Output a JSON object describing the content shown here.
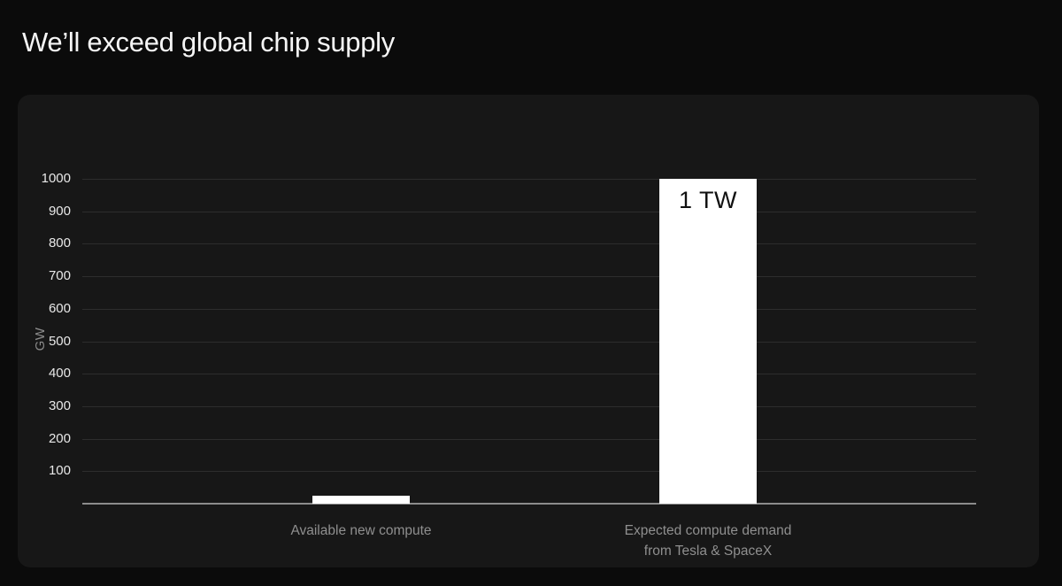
{
  "page": {
    "title": "We’ll exceed global chip supply"
  },
  "colors": {
    "page_bg": "#0b0b0b",
    "panel_bg": "#171717",
    "title": "#f5f5f5",
    "tick_label": "#e8e8e8",
    "axis_label": "#8a8a8a",
    "category_label": "#8f8f8f",
    "gridline": "#2d2d2d",
    "baseline": "#8c8c8c",
    "bar": "#ffffff",
    "bar_label": "#111111"
  },
  "chart_data": {
    "type": "bar",
    "title": "We’ll exceed global chip supply",
    "xlabel": "",
    "ylabel": "GW",
    "ylim": [
      0,
      1000
    ],
    "yticks": [
      100,
      200,
      300,
      400,
      500,
      600,
      700,
      800,
      900,
      1000
    ],
    "grid": true,
    "legend": false,
    "categories": [
      [
        "Available new compute"
      ],
      [
        "Expected compute demand",
        "from Tesla & SpaceX"
      ]
    ],
    "values": [
      25,
      1000
    ],
    "bar_labels": [
      "",
      "1 TW"
    ],
    "bar_color": "#ffffff"
  }
}
